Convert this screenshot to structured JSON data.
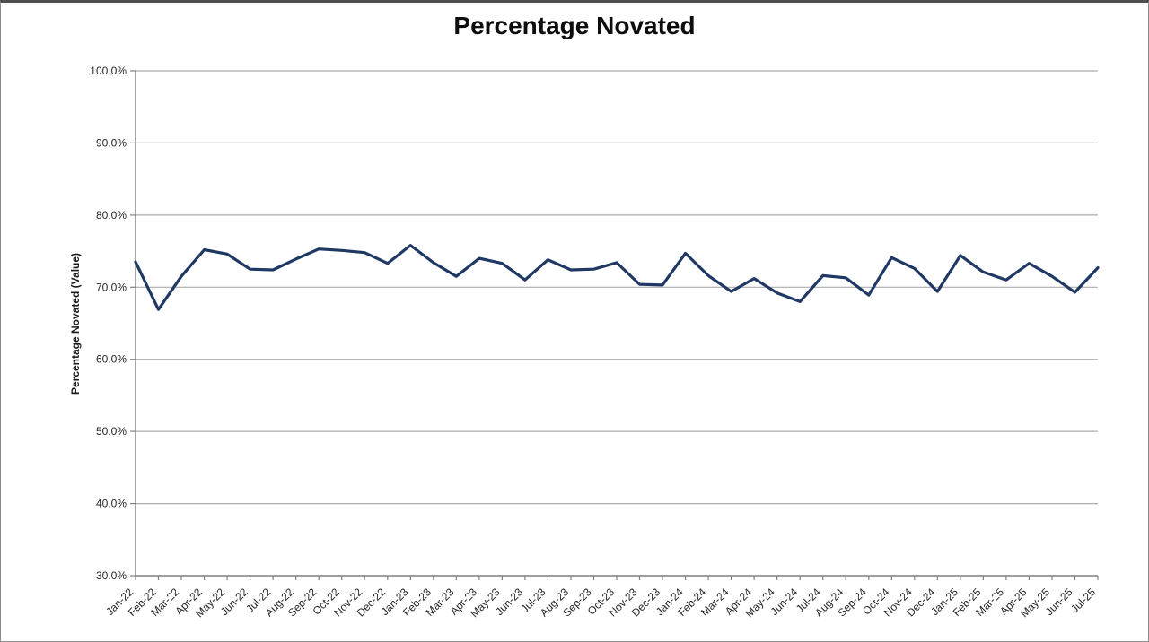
{
  "chart": {
    "title": "Percentage Novated",
    "y_axis_title": "Percentage Novated (Value)"
  },
  "chart_data": {
    "type": "line",
    "title": "Percentage Novated",
    "xlabel": "",
    "ylabel": "Percentage Novated (Value)",
    "ylim": [
      30,
      100
    ],
    "grid": true,
    "legend": false,
    "line_color": "#1F3864",
    "gridline_color": "#ACACAC",
    "axis_color": "#808080",
    "y_ticks": [
      {
        "value": 100,
        "label": "100.0%"
      },
      {
        "value": 90,
        "label": "90.0%"
      },
      {
        "value": 80,
        "label": "80.0%"
      },
      {
        "value": 70,
        "label": "70.0%"
      },
      {
        "value": 60,
        "label": "60.0%"
      },
      {
        "value": 50,
        "label": "50.0%"
      },
      {
        "value": 40,
        "label": "40.0%"
      },
      {
        "value": 30,
        "label": "30.0%"
      }
    ],
    "categories": [
      "Jan-22",
      "Feb-22",
      "Mar-22",
      "Apr-22",
      "May-22",
      "Jun-22",
      "Jul-22",
      "Aug-22",
      "Sep-22",
      "Oct-22",
      "Nov-22",
      "Dec-22",
      "Jan-23",
      "Feb-23",
      "Mar-23",
      "Apr-23",
      "May-23",
      "Jun-23",
      "Jul-23",
      "Aug-23",
      "Sep-23",
      "Oct-23",
      "Nov-23",
      "Dec-23",
      "Jan-24",
      "Feb-24",
      "Mar-24",
      "Apr-24",
      "May-24",
      "Jun-24",
      "Jul-24",
      "Aug-24",
      "Sep-24",
      "Oct-24",
      "Nov-24",
      "Dec-24",
      "Jan-25",
      "Feb-25",
      "Mar-25",
      "Apr-25",
      "May-25",
      "Jun-25",
      "Jul-25"
    ],
    "series": [
      {
        "name": "Percentage Novated",
        "values": [
          73.5,
          66.9,
          71.5,
          75.2,
          74.6,
          72.5,
          72.4,
          73.9,
          75.3,
          75.1,
          74.8,
          73.3,
          75.8,
          73.4,
          71.5,
          74.0,
          73.3,
          71.0,
          73.8,
          72.4,
          72.5,
          73.4,
          70.4,
          70.3,
          74.7,
          71.6,
          69.4,
          71.2,
          69.2,
          68.0,
          71.6,
          71.3,
          68.9,
          74.1,
          72.6,
          69.4,
          74.4,
          72.1,
          71.0,
          73.3,
          71.5,
          69.3,
          72.7
        ]
      }
    ]
  }
}
